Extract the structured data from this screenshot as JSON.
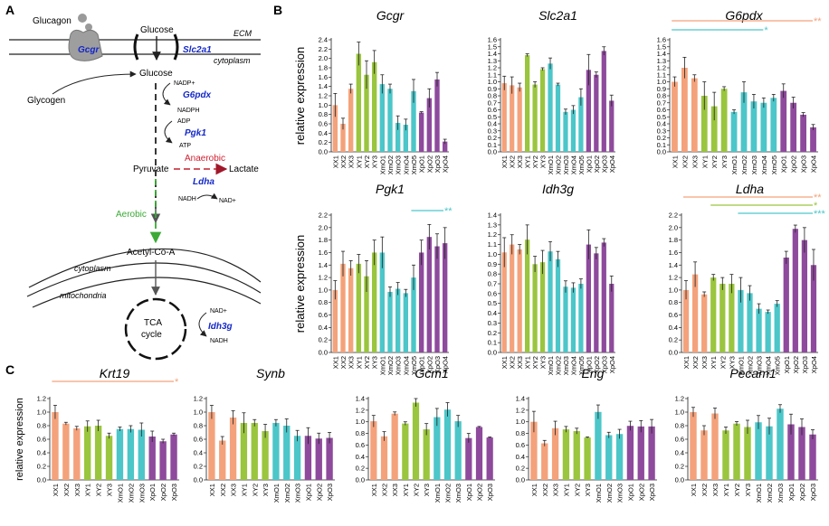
{
  "panel_labels": [
    "A",
    "B",
    "C"
  ],
  "colors": {
    "XX": "#F4A27B",
    "XY": "#9AC53E",
    "XmO": "#4CC6C9",
    "XpO": "#8E4A9C",
    "enzyme": "#1428C8",
    "anaerobic": "#D12030",
    "aerobic": "#3AAA35"
  },
  "pathway": {
    "glucagon": "Glucagon",
    "gcgr": "Gcgr",
    "glucose_top": "Glucose",
    "slc2a1": "Slc2a1",
    "ecm": "ECM",
    "cytoplasm_top": "cytoplasm",
    "glucose": "Glucose",
    "glycogen": "Glycogen",
    "nadp_plus": "NADP+",
    "g6pdx": "G6pdx",
    "nadph": "NADPH",
    "adp": "ADP",
    "pgk1": "Pgk1",
    "atp": "ATP",
    "pyruvate": "Pyruvate",
    "anaerobic": "Anaerobic",
    "lactate": "Lactate",
    "ldha": "Ldha",
    "nadh_ldha": "NADH",
    "nad_plus_ldha": "NAD+",
    "aerobic": "Aerobic",
    "acetyl": "Acetyl-Co-A",
    "cytoplasm_bottom": "cytoplasm",
    "mitochondria": "mitochondria",
    "tca_line1": "TCA",
    "tca_line2": "cycle",
    "nad_plus_tca": "NAD+",
    "idh3g": "Idh3g",
    "nadh_tca": "NADH"
  },
  "ylabel": "relative expression",
  "chart_data": [
    {
      "type": "bar",
      "panel": "B",
      "title": "Gcgr",
      "ylabel": "relative expression",
      "ylim": [
        0,
        2.4
      ],
      "yticks": [
        "0.0",
        "0.2",
        "0.4",
        "0.6",
        "0.8",
        "1.0",
        "1.2",
        "1.4",
        "1.6",
        "1.8",
        "2.0",
        "2.2",
        "2.4"
      ],
      "categories": [
        "XX1",
        "XX2",
        "XX3",
        "XY1",
        "XY2",
        "XY3",
        "XmO1",
        "XmO2",
        "XmO3",
        "XmO4",
        "XmO5",
        "XpO1",
        "XpO2",
        "XpO3",
        "XpO4"
      ],
      "groups": [
        "XX",
        "XX",
        "XX",
        "XY",
        "XY",
        "XY",
        "XmO",
        "XmO",
        "XmO",
        "XmO",
        "XmO",
        "XpO",
        "XpO",
        "XpO",
        "XpO"
      ],
      "values": [
        1.0,
        0.6,
        1.35,
        2.1,
        1.65,
        1.92,
        1.45,
        1.35,
        0.62,
        0.58,
        1.3,
        0.84,
        1.15,
        1.55,
        0.22
      ],
      "errors": [
        0.25,
        0.12,
        0.1,
        0.25,
        0.3,
        0.25,
        0.2,
        0.1,
        0.15,
        0.12,
        0.25,
        0.02,
        0.2,
        0.15,
        0.05
      ],
      "significance": []
    },
    {
      "type": "bar",
      "panel": "B",
      "title": "Slc2a1",
      "ylabel": "",
      "ylim": [
        0,
        1.6
      ],
      "yticks": [
        "0.0",
        "0.1",
        "0.2",
        "0.3",
        "0.4",
        "0.5",
        "0.6",
        "0.7",
        "0.8",
        "0.9",
        "1.0",
        "1.1",
        "1.2",
        "1.3",
        "1.4",
        "1.5",
        "1.6"
      ],
      "categories": [
        "XX1",
        "XX2",
        "XX3",
        "XY1",
        "XY2",
        "XY3",
        "XmO1",
        "XmO2",
        "XmO3",
        "XmO4",
        "XmO5",
        "XpO1",
        "XpO2",
        "XpO3",
        "XpO4"
      ],
      "groups": [
        "XX",
        "XX",
        "XX",
        "XY",
        "XY",
        "XY",
        "XmO",
        "XmO",
        "XmO",
        "XmO",
        "XmO",
        "XpO",
        "XpO",
        "XpO",
        "XpO"
      ],
      "values": [
        0.98,
        0.95,
        0.92,
        1.38,
        0.96,
        1.18,
        1.26,
        0.96,
        0.57,
        0.6,
        0.78,
        1.17,
        1.1,
        1.44,
        0.73
      ],
      "errors": [
        0.1,
        0.12,
        0.06,
        0.02,
        0.04,
        0.02,
        0.08,
        0.02,
        0.04,
        0.06,
        0.12,
        0.22,
        0.04,
        0.06,
        0.08
      ],
      "significance": []
    },
    {
      "type": "bar",
      "panel": "B",
      "title": "G6pdx",
      "ylabel": "",
      "ylim": [
        0,
        1.6
      ],
      "yticks": [
        "0.0",
        "0.1",
        "0.2",
        "0.3",
        "0.4",
        "0.5",
        "0.6",
        "0.7",
        "0.8",
        "0.9",
        "1.0",
        "1.1",
        "1.2",
        "1.3",
        "1.4",
        "1.5",
        "1.6"
      ],
      "categories": [
        "XX1",
        "XX2",
        "XX3",
        "XY1",
        "XY2",
        "XY3",
        "XmO1",
        "XmO2",
        "XmO3",
        "XmO4",
        "XmO5",
        "XpO1",
        "XpO2",
        "XpO3",
        "XpO4"
      ],
      "groups": [
        "XX",
        "XX",
        "XX",
        "XY",
        "XY",
        "XY",
        "XmO",
        "XmO",
        "XmO",
        "XmO",
        "XmO",
        "XpO",
        "XpO",
        "XpO",
        "XpO"
      ],
      "values": [
        1.0,
        1.2,
        1.05,
        0.8,
        0.65,
        0.9,
        0.57,
        0.85,
        0.72,
        0.7,
        0.77,
        0.87,
        0.7,
        0.53,
        0.35
      ],
      "errors": [
        0.07,
        0.15,
        0.05,
        0.2,
        0.2,
        0.03,
        0.03,
        0.15,
        0.1,
        0.07,
        0.05,
        0.1,
        0.08,
        0.03,
        0.04
      ],
      "significance": [
        {
          "label": "**",
          "group": "XX",
          "x_from": "XX1",
          "x_to": "XpO4"
        },
        {
          "label": "*",
          "group": "XmO",
          "x_from": "XX1",
          "x_to": "XmO4"
        }
      ]
    },
    {
      "type": "bar",
      "panel": "B",
      "title": "Pgk1",
      "ylabel": "relative expression",
      "ylim": [
        0,
        2.2
      ],
      "yticks": [
        "0.0",
        "0.2",
        "0.4",
        "0.6",
        "0.8",
        "1.0",
        "1.2",
        "1.4",
        "1.6",
        "1.8",
        "2.0",
        "2.2"
      ],
      "categories": [
        "XX1",
        "XX2",
        "XX3",
        "XY1",
        "XY2",
        "XY3",
        "XmO1",
        "XmO2",
        "XmO3",
        "XmO4",
        "XmO5",
        "XpO1",
        "XpO2",
        "XpO3",
        "XpO4"
      ],
      "groups": [
        "XX",
        "XX",
        "XX",
        "XY",
        "XY",
        "XY",
        "XmO",
        "XmO",
        "XmO",
        "XmO",
        "XmO",
        "XpO",
        "XpO",
        "XpO",
        "XpO"
      ],
      "values": [
        1.0,
        1.42,
        1.35,
        1.42,
        1.22,
        1.6,
        1.6,
        0.97,
        1.02,
        0.95,
        1.2,
        1.6,
        1.85,
        1.7,
        1.75
      ],
      "errors": [
        0.15,
        0.2,
        0.12,
        0.15,
        0.25,
        0.2,
        0.25,
        0.08,
        0.1,
        0.06,
        0.2,
        0.2,
        0.2,
        0.2,
        0.25
      ],
      "significance": [
        {
          "label": "**",
          "group": "XmO",
          "x_from": "XmO5",
          "x_to": "XpO4"
        }
      ]
    },
    {
      "type": "bar",
      "panel": "B",
      "title": "Idh3g",
      "ylabel": "",
      "ylim": [
        0,
        1.4
      ],
      "yticks": [
        "0.0",
        "0.1",
        "0.2",
        "0.3",
        "0.4",
        "0.5",
        "0.6",
        "0.7",
        "0.8",
        "0.9",
        "1.0",
        "1.1",
        "1.2",
        "1.3",
        "1.4"
      ],
      "categories": [
        "XX1",
        "XX2",
        "XX3",
        "XY1",
        "XY2",
        "XY3",
        "XmO1",
        "XmO2",
        "XmO3",
        "XmO4",
        "XmO5",
        "XpO1",
        "XpO2",
        "XpO3",
        "XpO4"
      ],
      "groups": [
        "XX",
        "XX",
        "XX",
        "XY",
        "XY",
        "XY",
        "XmO",
        "XmO",
        "XmO",
        "XmO",
        "XmO",
        "XpO",
        "XpO",
        "XpO",
        "XpO"
      ],
      "values": [
        1.02,
        1.1,
        1.05,
        1.15,
        0.9,
        0.92,
        1.03,
        0.95,
        0.67,
        0.66,
        0.7,
        1.1,
        1.01,
        1.12,
        0.7
      ],
      "errors": [
        0.15,
        0.1,
        0.05,
        0.15,
        0.08,
        0.12,
        0.1,
        0.08,
        0.06,
        0.05,
        0.05,
        0.15,
        0.06,
        0.04,
        0.08
      ],
      "significance": []
    },
    {
      "type": "bar",
      "panel": "B",
      "title": "Ldha",
      "ylabel": "",
      "ylim": [
        0,
        2.2
      ],
      "yticks": [
        "0.0",
        "0.2",
        "0.4",
        "0.6",
        "0.8",
        "1.0",
        "1.2",
        "1.4",
        "1.6",
        "1.8",
        "2.0",
        "2.2"
      ],
      "categories": [
        "XX1",
        "XX2",
        "XX3",
        "XY1",
        "XY2",
        "XY3",
        "XmO1",
        "XmO2",
        "XmO3",
        "XmO4",
        "XmO5",
        "XpO1",
        "XpO2",
        "XpO3",
        "XpO4"
      ],
      "groups": [
        "XX",
        "XX",
        "XX",
        "XY",
        "XY",
        "XY",
        "XmO",
        "XmO",
        "XmO",
        "XmO",
        "XmO",
        "XpO",
        "XpO",
        "XpO",
        "XpO"
      ],
      "values": [
        1.0,
        1.25,
        0.93,
        1.2,
        1.1,
        1.1,
        1.0,
        0.95,
        0.7,
        0.65,
        0.78,
        1.52,
        1.98,
        1.8,
        1.4
      ],
      "errors": [
        0.15,
        0.2,
        0.04,
        0.05,
        0.1,
        0.15,
        0.2,
        0.12,
        0.08,
        0.03,
        0.05,
        0.1,
        0.06,
        0.2,
        0.25
      ],
      "significance": [
        {
          "label": "**",
          "group": "XX",
          "x_from": "XX1",
          "x_to": "XpO4"
        },
        {
          "label": "*",
          "group": "XY",
          "x_from": "XY1",
          "x_to": "XpO4"
        },
        {
          "label": "***",
          "group": "XmO",
          "x_from": "XmO1",
          "x_to": "XpO4"
        }
      ]
    },
    {
      "type": "bar",
      "panel": "C",
      "title": "Krt19",
      "ylabel": "relative expression",
      "ylim": [
        0,
        1.2
      ],
      "yticks": [
        "0.0",
        "0.2",
        "0.4",
        "0.6",
        "0.8",
        "1.0",
        "1.2"
      ],
      "categories": [
        "XX1",
        "XX2",
        "XX3",
        "XY1",
        "XY2",
        "XY3",
        "XmO1",
        "XmO2",
        "XmO3",
        "XpO1",
        "XpO2",
        "XpO3"
      ],
      "groups": [
        "XX",
        "XX",
        "XX",
        "XY",
        "XY",
        "XY",
        "XmO",
        "XmO",
        "XmO",
        "XpO",
        "XpO",
        "XpO"
      ],
      "values": [
        1.0,
        0.83,
        0.76,
        0.79,
        0.8,
        0.65,
        0.75,
        0.75,
        0.74,
        0.64,
        0.57,
        0.67
      ],
      "errors": [
        0.1,
        0.02,
        0.03,
        0.08,
        0.08,
        0.04,
        0.03,
        0.05,
        0.1,
        0.08,
        0.03,
        0.02
      ],
      "significance": [
        {
          "label": "*",
          "group": "XX",
          "x_from": "XX1",
          "x_to": "XpO3"
        }
      ]
    },
    {
      "type": "bar",
      "panel": "C",
      "title": "Synb",
      "ylabel": "",
      "ylim": [
        0,
        1.2
      ],
      "yticks": [
        "0.0",
        "0.2",
        "0.4",
        "0.6",
        "0.8",
        "1.0",
        "1.2"
      ],
      "categories": [
        "XX1",
        "XX2",
        "XX3",
        "XY1",
        "XY2",
        "XY3",
        "XmO1",
        "XmO2",
        "XmO3",
        "XpO1",
        "XpO2",
        "XpO3"
      ],
      "groups": [
        "XX",
        "XX",
        "XX",
        "XY",
        "XY",
        "XY",
        "XmO",
        "XmO",
        "XmO",
        "XpO",
        "XpO",
        "XpO"
      ],
      "values": [
        1.0,
        0.58,
        0.92,
        0.84,
        0.84,
        0.72,
        0.84,
        0.8,
        0.65,
        0.65,
        0.61,
        0.62
      ],
      "errors": [
        0.1,
        0.06,
        0.1,
        0.15,
        0.05,
        0.1,
        0.05,
        0.1,
        0.08,
        0.12,
        0.08,
        0.08
      ],
      "significance": []
    },
    {
      "type": "bar",
      "panel": "C",
      "title": "Gcm1",
      "ylabel": "",
      "ylim": [
        0,
        1.4
      ],
      "yticks": [
        "0.0",
        "0.2",
        "0.4",
        "0.6",
        "0.8",
        "1.0",
        "1.2",
        "1.4"
      ],
      "categories": [
        "XX1",
        "XX2",
        "XX3",
        "XY1",
        "XY2",
        "XY3",
        "XmO1",
        "XmO2",
        "XmO3",
        "XpO1",
        "XpO2",
        "XpO3"
      ],
      "groups": [
        "XX",
        "XX",
        "XX",
        "XY",
        "XY",
        "XY",
        "XmO",
        "XmO",
        "XmO",
        "XpO",
        "XpO",
        "XpO"
      ],
      "values": [
        1.01,
        0.75,
        1.14,
        0.97,
        1.33,
        0.87,
        1.08,
        1.21,
        1.01,
        0.72,
        0.91,
        0.73
      ],
      "errors": [
        0.1,
        0.08,
        0.03,
        0.03,
        0.07,
        0.1,
        0.15,
        0.12,
        0.1,
        0.08,
        0.01,
        0.01
      ],
      "significance": []
    },
    {
      "type": "bar",
      "panel": "C",
      "title": "Eng",
      "ylabel": "",
      "ylim": [
        0,
        1.4
      ],
      "yticks": [
        "0.0",
        "0.2",
        "0.4",
        "0.6",
        "0.8",
        "1.0",
        "1.2",
        "1.4"
      ],
      "categories": [
        "XX1",
        "XX2",
        "XX3",
        "XY1",
        "XY2",
        "XY3",
        "XmO1",
        "XmO2",
        "XmO3",
        "XpO1",
        "XpO2",
        "XpO3"
      ],
      "groups": [
        "XX",
        "XX",
        "XX",
        "XY",
        "XY",
        "XY",
        "XmO",
        "XmO",
        "XmO",
        "XpO",
        "XpO",
        "XpO"
      ],
      "values": [
        1.0,
        0.63,
        0.89,
        0.87,
        0.84,
        0.73,
        1.17,
        0.77,
        0.79,
        0.93,
        0.92,
        0.92
      ],
      "errors": [
        0.18,
        0.05,
        0.12,
        0.05,
        0.05,
        0.01,
        0.12,
        0.05,
        0.08,
        0.08,
        0.1,
        0.12
      ],
      "significance": []
    },
    {
      "type": "bar",
      "panel": "C",
      "title": "Pecam1",
      "ylabel": "",
      "ylim": [
        0,
        1.2
      ],
      "yticks": [
        "0.0",
        "0.2",
        "0.4",
        "0.6",
        "0.8",
        "1.0",
        "1.2"
      ],
      "categories": [
        "XX1",
        "XX2",
        "XX3",
        "XY1",
        "XY2",
        "XY3",
        "XmO1",
        "XmO2",
        "XmO3",
        "XpO1",
        "XpO2",
        "XpO3"
      ],
      "groups": [
        "XX",
        "XX",
        "XX",
        "XY",
        "XY",
        "XY",
        "XmO",
        "XmO",
        "XmO",
        "XpO",
        "XpO",
        "XpO"
      ],
      "values": [
        1.0,
        0.73,
        0.98,
        0.73,
        0.83,
        0.78,
        0.85,
        0.79,
        1.05,
        0.82,
        0.78,
        0.67
      ],
      "errors": [
        0.07,
        0.07,
        0.08,
        0.05,
        0.03,
        0.1,
        0.1,
        0.12,
        0.06,
        0.15,
        0.12,
        0.07
      ],
      "significance": []
    }
  ]
}
